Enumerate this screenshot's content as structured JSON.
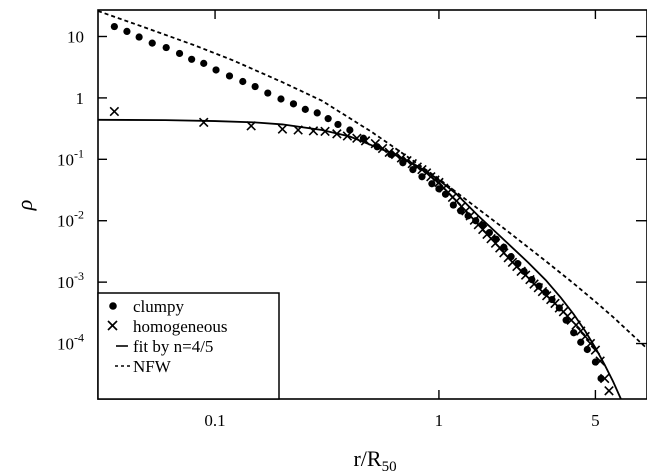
{
  "chart_data": {
    "type": "scatter",
    "title": "",
    "xlabel": "r/R",
    "xlabel_sub": "50",
    "ylabel": "ρ",
    "xscale": "log",
    "yscale": "log",
    "xlim": [
      0.03,
      8.5
    ],
    "ylim": [
      1.25e-05,
      27
    ],
    "grid": false,
    "legend_position": "bottom-left",
    "x_ticks": [
      {
        "value": 0.1,
        "label": "0.1"
      },
      {
        "value": 1,
        "label": "1"
      },
      {
        "value": 5,
        "label": "5"
      }
    ],
    "y_ticks": [
      {
        "value": 10,
        "base": "10",
        "exp": ""
      },
      {
        "value": 1,
        "base": "1",
        "exp": ""
      },
      {
        "value": 0.1,
        "base": "10",
        "exp": "-1"
      },
      {
        "value": 0.01,
        "base": "10",
        "exp": "-2"
      },
      {
        "value": 0.001,
        "base": "10",
        "exp": "-3"
      },
      {
        "value": 0.0001,
        "base": "10",
        "exp": "-4"
      }
    ],
    "series": [
      {
        "name": "clumpy",
        "marker": "dot",
        "x": [
          0.0355,
          0.0404,
          0.0458,
          0.0524,
          0.0605,
          0.0694,
          0.0786,
          0.089,
          0.101,
          0.116,
          0.133,
          0.151,
          0.172,
          0.197,
          0.224,
          0.253,
          0.286,
          0.32,
          0.354,
          0.4,
          0.46,
          0.53,
          0.61,
          0.69,
          0.765,
          0.84,
          0.93,
          1.0,
          1.07,
          1.16,
          1.25,
          1.35,
          1.46,
          1.57,
          1.68,
          1.8,
          1.95,
          2.1,
          2.25,
          2.4,
          2.6,
          2.8,
          3.0,
          3.2,
          3.45,
          3.7,
          4.0,
          4.3,
          4.6,
          5.0,
          5.3
        ],
        "y": [
          14.5,
          12.1,
          9.8,
          7.8,
          6.6,
          5.3,
          4.25,
          3.65,
          2.85,
          2.28,
          1.85,
          1.53,
          1.2,
          0.96,
          0.8,
          0.65,
          0.57,
          0.46,
          0.37,
          0.3,
          0.22,
          0.16,
          0.12,
          0.088,
          0.068,
          0.052,
          0.04,
          0.033,
          0.027,
          0.018,
          0.0145,
          0.012,
          0.01,
          0.0084,
          0.0064,
          0.005,
          0.0037,
          0.0026,
          0.002,
          0.0015,
          0.0011,
          0.00086,
          0.00068,
          0.00052,
          0.00038,
          0.00024,
          0.00015,
          0.000105,
          8e-05,
          5e-05,
          2.7e-05
        ]
      },
      {
        "name": "homogeneous",
        "marker": "cross",
        "x": [
          0.0355,
          0.089,
          0.145,
          0.2,
          0.235,
          0.275,
          0.31,
          0.35,
          0.39,
          0.43,
          0.47,
          0.52,
          0.56,
          0.6,
          0.64,
          0.68,
          0.72,
          0.76,
          0.8,
          0.84,
          0.88,
          0.92,
          0.96,
          1.0,
          1.05,
          1.1,
          1.15,
          1.2,
          1.26,
          1.32,
          1.38,
          1.44,
          1.5,
          1.57,
          1.64,
          1.71,
          1.79,
          1.87,
          1.95,
          2.04,
          2.13,
          2.23,
          2.33,
          2.44,
          2.55,
          2.66,
          2.78,
          2.9,
          3.03,
          3.16,
          3.3,
          3.45,
          3.6,
          3.75,
          3.9,
          4.1,
          4.3,
          4.5,
          4.75,
          5.0,
          5.25,
          5.5,
          5.75
        ],
        "y": [
          0.6,
          0.4,
          0.35,
          0.31,
          0.3,
          0.29,
          0.285,
          0.26,
          0.24,
          0.22,
          0.2,
          0.18,
          0.15,
          0.13,
          0.12,
          0.105,
          0.095,
          0.085,
          0.075,
          0.068,
          0.06,
          0.052,
          0.046,
          0.042,
          0.034,
          0.029,
          0.024,
          0.021,
          0.017,
          0.0145,
          0.012,
          0.0102,
          0.0086,
          0.0072,
          0.006,
          0.0051,
          0.0043,
          0.0036,
          0.003,
          0.0025,
          0.0021,
          0.0018,
          0.0015,
          0.0013,
          0.0011,
          0.00093,
          0.00081,
          0.0007,
          0.0006,
          0.00052,
          0.00045,
          0.00038,
          0.00033,
          0.00028,
          0.00024,
          0.0002,
          0.00016,
          0.00013,
          0.0001,
          7.8e-05,
          5.2e-05,
          2.7e-05,
          1.7e-05
        ]
      },
      {
        "name": "fit by n=4/5",
        "marker": "solid-line",
        "x": [
          0.03,
          0.06,
          0.1,
          0.15,
          0.2,
          0.3,
          0.4,
          0.5,
          0.6,
          0.7,
          0.8,
          0.9,
          1.0,
          1.2,
          1.5,
          2.0,
          2.5,
          3.0,
          3.5,
          4.0,
          4.5,
          5.0,
          5.5,
          6.0,
          6.5
        ],
        "y": [
          0.44,
          0.435,
          0.42,
          0.4,
          0.37,
          0.3,
          0.235,
          0.17,
          0.13,
          0.1,
          0.078,
          0.06,
          0.046,
          0.027,
          0.012,
          0.0045,
          0.0021,
          0.00108,
          0.00056,
          0.0003,
          0.00016,
          8.5e-05,
          4.5e-05,
          2.4e-05,
          1.25e-05
        ]
      },
      {
        "name": "NFW",
        "marker": "dashed-line",
        "x": [
          0.03,
          0.05,
          0.08,
          0.12,
          0.2,
          0.3,
          0.5,
          0.7,
          1.0,
          1.5,
          2.0,
          3.0,
          4.0,
          5.0,
          6.0,
          7.0,
          8.5
        ],
        "y": [
          26,
          13.5,
          7.3,
          4.1,
          1.8,
          0.9,
          0.28,
          0.12,
          0.048,
          0.0155,
          0.007,
          0.0022,
          0.00095,
          0.00048,
          0.00027,
          0.00016,
          8.3e-05
        ]
      }
    ]
  }
}
